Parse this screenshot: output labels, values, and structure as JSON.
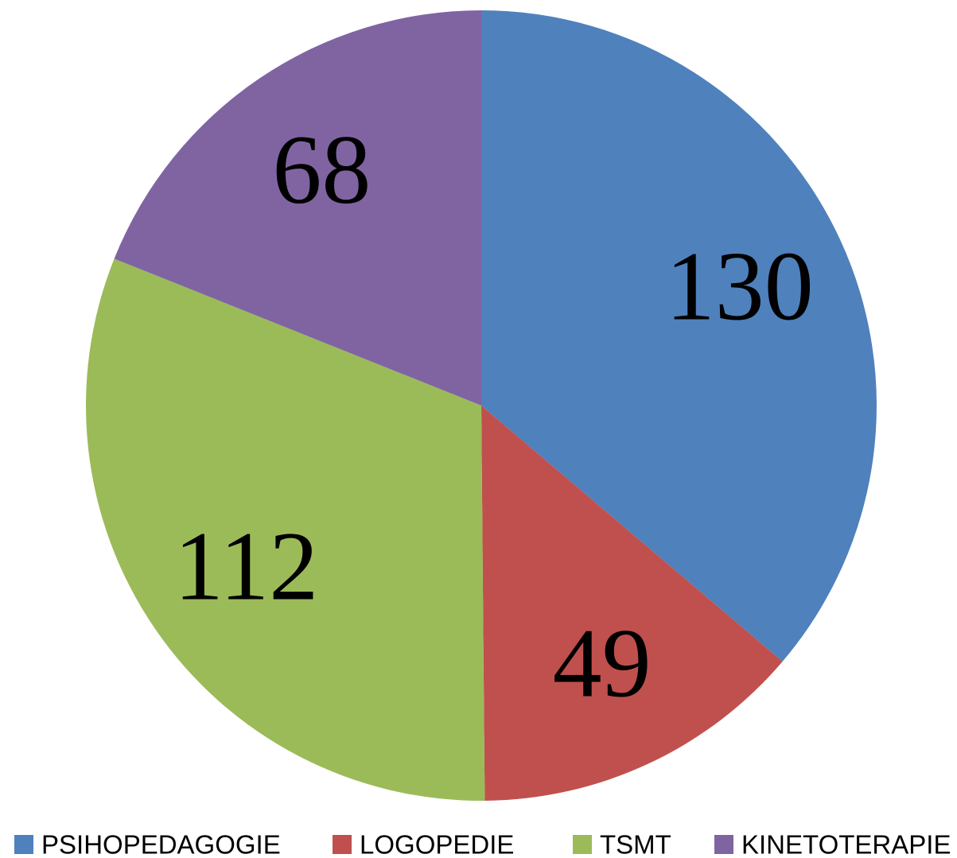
{
  "chart_data": {
    "type": "pie",
    "categories": [
      "PSIHOPEDAGOGIE",
      "LOGOPEDIE",
      "TSMT",
      "KINETOTERAPIE"
    ],
    "values": [
      130,
      49,
      112,
      68
    ],
    "colors": [
      "#4f81bd",
      "#c0504d",
      "#9bbb59",
      "#8064a2"
    ],
    "legend": "bottom"
  }
}
